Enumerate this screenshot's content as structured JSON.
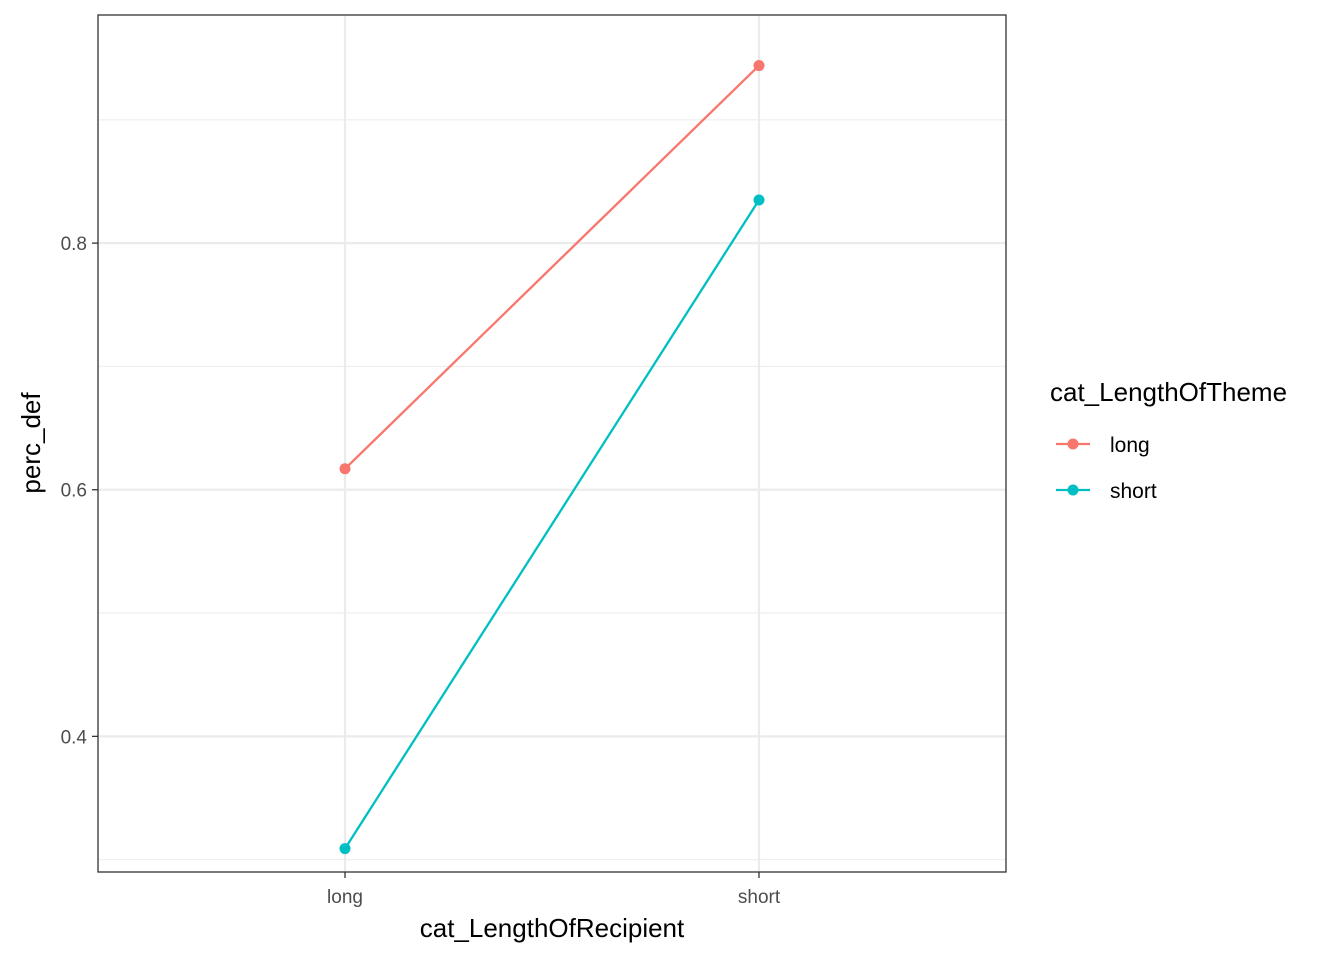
{
  "chart_data": {
    "type": "line",
    "title": "",
    "xlabel": "cat_LengthOfRecipient",
    "ylabel": "perc_def",
    "categories": [
      "long",
      "short"
    ],
    "ylim": [
      0.29,
      0.985
    ],
    "yticks": [
      0.4,
      0.6,
      0.8
    ],
    "ytick_labels": [
      "0.4",
      "0.6",
      "0.8"
    ],
    "grid": true,
    "legend": {
      "title": "cat_LengthOfTheme",
      "position": "right"
    },
    "series": [
      {
        "name": "long",
        "color": "#F8766D",
        "values": [
          0.617,
          0.944
        ]
      },
      {
        "name": "short",
        "color": "#00BFC4",
        "values": [
          0.309,
          0.835
        ]
      }
    ]
  }
}
